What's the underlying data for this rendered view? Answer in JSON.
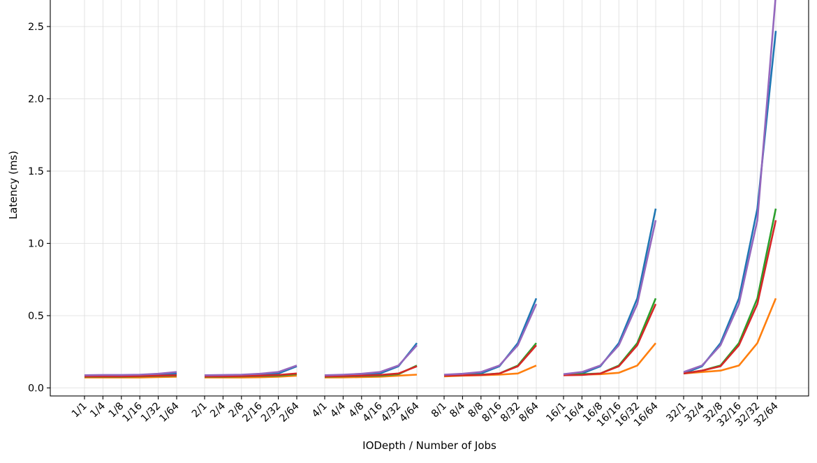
{
  "chart_data": {
    "type": "line",
    "xlabel": "IODepth / Number of Jobs",
    "ylabel": "Latency (ms)",
    "ylim": [
      -0.06,
      2.72
    ],
    "yticks": [
      "0.0",
      "0.5",
      "1.0",
      "1.5",
      "2.0",
      "2.5"
    ],
    "ytick_values": [
      0.0,
      0.5,
      1.0,
      1.5,
      2.0,
      2.5
    ],
    "grid": true,
    "legend": "none",
    "groups": [
      [
        "1/1",
        "1/4",
        "1/8",
        "1/16",
        "1/32",
        "1/64"
      ],
      [
        "2/1",
        "2/4",
        "2/8",
        "2/16",
        "2/32",
        "2/64"
      ],
      [
        "4/1",
        "4/4",
        "4/8",
        "4/16",
        "4/32",
        "4/64"
      ],
      [
        "8/1",
        "8/4",
        "8/8",
        "8/16",
        "8/32",
        "8/64"
      ],
      [
        "16/1",
        "16/4",
        "16/8",
        "16/16",
        "16/32",
        "16/64"
      ],
      [
        "32/1",
        "32/4",
        "32/8",
        "32/16",
        "32/32",
        "32/64"
      ]
    ],
    "series": [
      {
        "color": "#1f77b4",
        "values": [
          [
            0.085,
            0.085,
            0.085,
            0.085,
            0.09,
            0.1
          ],
          [
            0.085,
            0.085,
            0.085,
            0.09,
            0.1,
            0.15
          ],
          [
            0.085,
            0.085,
            0.09,
            0.1,
            0.15,
            0.31
          ],
          [
            0.09,
            0.095,
            0.1,
            0.15,
            0.31,
            0.62
          ],
          [
            0.09,
            0.1,
            0.15,
            0.31,
            0.62,
            1.24
          ],
          [
            0.1,
            0.15,
            0.31,
            0.62,
            1.24,
            2.47
          ]
        ]
      },
      {
        "color": "#ff7f0e",
        "values": [
          [
            0.072,
            0.072,
            0.072,
            0.072,
            0.075,
            0.078
          ],
          [
            0.072,
            0.072,
            0.072,
            0.074,
            0.078,
            0.085
          ],
          [
            0.072,
            0.073,
            0.075,
            0.078,
            0.085,
            0.092
          ],
          [
            0.08,
            0.085,
            0.088,
            0.092,
            0.1,
            0.155
          ],
          [
            0.088,
            0.092,
            0.095,
            0.105,
            0.155,
            0.31
          ],
          [
            0.1,
            0.11,
            0.12,
            0.155,
            0.31,
            0.62
          ]
        ]
      },
      {
        "color": "#2ca02c",
        "values": [
          [
            0.078,
            0.078,
            0.078,
            0.08,
            0.082,
            0.085
          ],
          [
            0.078,
            0.078,
            0.08,
            0.082,
            0.085,
            0.095
          ],
          [
            0.078,
            0.08,
            0.082,
            0.085,
            0.095,
            0.155
          ],
          [
            0.085,
            0.088,
            0.092,
            0.1,
            0.155,
            0.31
          ],
          [
            0.09,
            0.095,
            0.1,
            0.155,
            0.31,
            0.62
          ],
          [
            0.1,
            0.12,
            0.155,
            0.31,
            0.62,
            1.24
          ]
        ]
      },
      {
        "color": "#d62728",
        "values": [
          [
            0.08,
            0.08,
            0.08,
            0.082,
            0.085,
            0.088
          ],
          [
            0.08,
            0.08,
            0.082,
            0.085,
            0.09,
            0.1
          ],
          [
            0.08,
            0.082,
            0.085,
            0.09,
            0.1,
            0.15
          ],
          [
            0.085,
            0.088,
            0.09,
            0.1,
            0.15,
            0.295
          ],
          [
            0.088,
            0.09,
            0.1,
            0.15,
            0.295,
            0.58
          ],
          [
            0.1,
            0.12,
            0.15,
            0.295,
            0.58,
            1.16
          ]
        ]
      },
      {
        "color": "#9467bd",
        "values": [
          [
            0.088,
            0.09,
            0.09,
            0.092,
            0.098,
            0.11
          ],
          [
            0.088,
            0.09,
            0.092,
            0.098,
            0.11,
            0.155
          ],
          [
            0.088,
            0.092,
            0.098,
            0.11,
            0.155,
            0.295
          ],
          [
            0.092,
            0.098,
            0.11,
            0.155,
            0.295,
            0.58
          ],
          [
            0.095,
            0.11,
            0.155,
            0.295,
            0.58,
            1.16
          ],
          [
            0.11,
            0.155,
            0.295,
            0.58,
            1.16,
            2.72
          ]
        ]
      }
    ]
  }
}
